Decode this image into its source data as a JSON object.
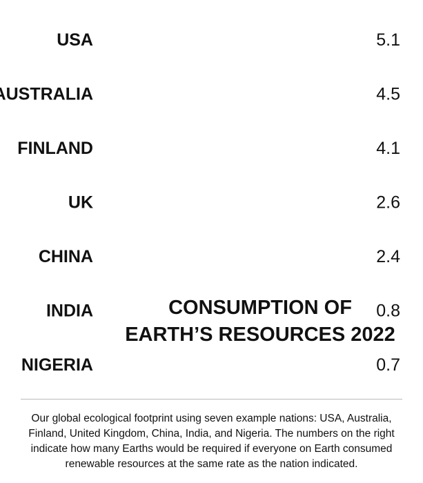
{
  "chart_data": {
    "type": "pictograph",
    "title": [
      "CONSUMPTION OF",
      "EARTH’S RESOURCES 2022"
    ],
    "icon": "globe-icon",
    "unit_per_icon": 1,
    "categories": [
      "USA",
      "AUSTRALIA",
      "FINLAND",
      "UK",
      "CHINA",
      "INDIA",
      "NIGERIA"
    ],
    "values": [
      5.1,
      4.5,
      4.1,
      2.6,
      2.4,
      0.8,
      0.7
    ],
    "value_labels": [
      "5.1",
      "4.5",
      "4.1",
      "2.6",
      "2.4",
      "0.8",
      "0.7"
    ],
    "color": "#1f6fbf"
  },
  "caption": "Our global ecological footprint using seven example nations: USA, Australia, Finland, United Kingdom, China, India, and Nigeria. The numbers on the right indicate how many Earths would be required if everyone on Earth consumed renewable resources at the same rate as the nation indicated."
}
